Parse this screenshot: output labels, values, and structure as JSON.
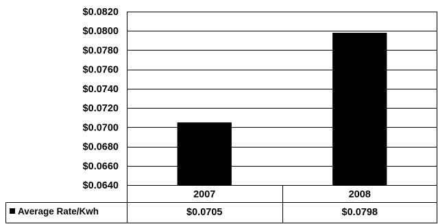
{
  "chart_data": {
    "type": "bar",
    "categories": [
      "2007",
      "2008"
    ],
    "series": [
      {
        "name": "Average Rate/Kwh",
        "values": [
          0.0705,
          0.0798
        ],
        "value_labels": [
          "$0.0705",
          "$0.0798"
        ],
        "color": "#000000"
      }
    ],
    "ylim": [
      0.064,
      0.082
    ],
    "yticks": [
      0.064,
      0.066,
      0.068,
      0.07,
      0.072,
      0.074,
      0.076,
      0.078,
      0.08,
      0.082
    ],
    "ytick_labels": [
      "$0.0640",
      "$0.0660",
      "$0.0680",
      "$0.0700",
      "$0.0720",
      "$0.0740",
      "$0.0760",
      "$0.0780",
      "$0.0800",
      "$0.0820"
    ],
    "grid": true,
    "legend": "data-table-left",
    "title": "",
    "xlabel": "",
    "ylabel": ""
  }
}
